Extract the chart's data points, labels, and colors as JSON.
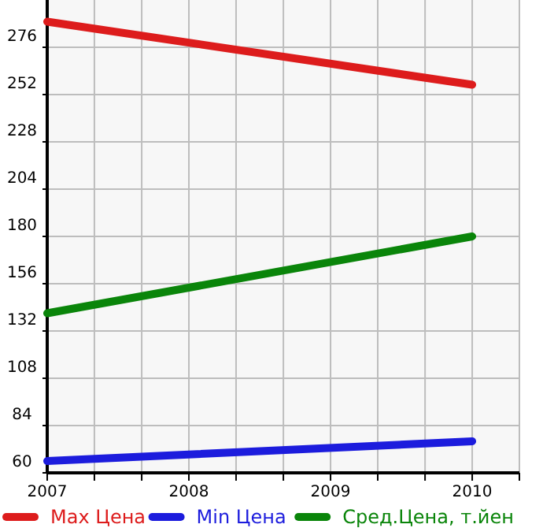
{
  "chart_data": {
    "type": "line",
    "x": [
      2007,
      2010
    ],
    "series": [
      {
        "name": "Max Цена",
        "color": "#dd1c1c",
        "values": [
          289,
          257
        ]
      },
      {
        "name": "Min Цена",
        "color": "#1c1cdd",
        "values": [
          66,
          76
        ]
      },
      {
        "name": "Сред.Цена, т.йен",
        "color": "#0a850a",
        "values": [
          141,
          180
        ]
      }
    ],
    "xlim": [
      2007,
      2010.333
    ],
    "xticks": [
      2007,
      {
        "value": 2007.333,
        "label": null
      },
      {
        "value": 2007.667,
        "label": null
      },
      2008,
      {
        "value": 2008.333,
        "label": null
      },
      {
        "value": 2008.667,
        "label": null
      },
      2009,
      {
        "value": 2009.333,
        "label": null
      },
      {
        "value": 2009.667,
        "label": null
      },
      2010,
      {
        "value": 2010.333,
        "label": null
      }
    ],
    "ylim": [
      60,
      300
    ],
    "yticks": [
      60,
      84,
      108,
      132,
      156,
      180,
      204,
      228,
      252,
      276
    ],
    "grid": true,
    "legend": "bottom",
    "marker": "none",
    "line_style": "solid"
  }
}
